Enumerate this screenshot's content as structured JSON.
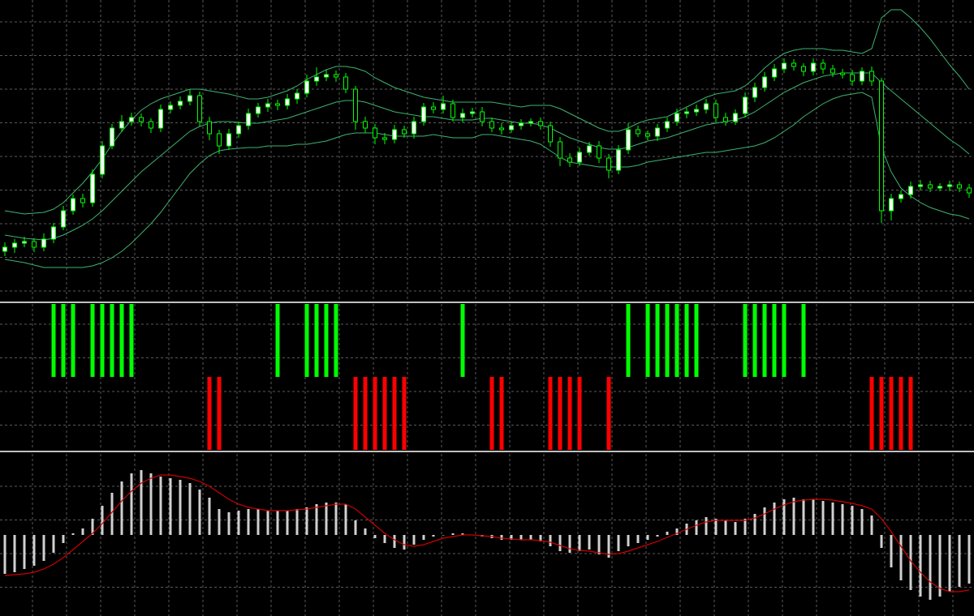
{
  "chart_data": [
    {
      "type": "candlestick",
      "ylim": [
        0,
        370
      ],
      "grid": true,
      "color": "#00ff00",
      "up_fill": "#ffffff",
      "down_fill": "#000000",
      "open": [
        60,
        65,
        70,
        72,
        65,
        75,
        90,
        110,
        125,
        120,
        155,
        190,
        212,
        220,
        225,
        220,
        212,
        235,
        240,
        245,
        252,
        220,
        205,
        190,
        205,
        215,
        230,
        238,
        242,
        240,
        248,
        255,
        270,
        275,
        278,
        275,
        260,
        220,
        212,
        200,
        198,
        210,
        205,
        220,
        238,
        235,
        242,
        225,
        230,
        232,
        220,
        212,
        210,
        215,
        218,
        220,
        215,
        195,
        175,
        170,
        182,
        190,
        175,
        160,
        185,
        210,
        205,
        202,
        212,
        220,
        230,
        232,
        235,
        242,
        225,
        220,
        230,
        250,
        262,
        275,
        285,
        292,
        288,
        282,
        292,
        285,
        280,
        278,
        270,
        282,
        270,
        110,
        125,
        130,
        140,
        142,
        138,
        140,
        142,
        138
      ],
      "high": [
        71,
        75,
        78,
        76,
        82,
        95,
        116,
        130,
        131,
        161,
        196,
        217,
        228,
        231,
        230,
        224,
        241,
        245,
        251,
        260,
        257,
        226,
        210,
        211,
        220,
        236,
        243,
        248,
        247,
        254,
        260,
        278,
        287,
        284,
        283,
        280,
        264,
        226,
        217,
        206,
        216,
        215,
        226,
        243,
        244,
        252,
        247,
        236,
        237,
        238,
        225,
        218,
        220,
        223,
        224,
        225,
        220,
        201,
        181,
        188,
        195,
        196,
        180,
        191,
        218,
        215,
        209,
        217,
        225,
        236,
        237,
        241,
        248,
        247,
        231,
        235,
        256,
        268,
        281,
        291,
        298,
        297,
        292,
        298,
        297,
        290,
        285,
        284,
        287,
        288,
        274,
        131,
        135,
        146,
        148,
        147,
        144,
        147,
        146,
        143
      ],
      "low": [
        54,
        58,
        65,
        59,
        60,
        70,
        86,
        105,
        114,
        115,
        150,
        186,
        207,
        215,
        214,
        206,
        207,
        230,
        235,
        240,
        214,
        197,
        180,
        185,
        200,
        210,
        225,
        232,
        234,
        235,
        242,
        250,
        264,
        270,
        269,
        255,
        210,
        206,
        192,
        192,
        193,
        200,
        199,
        215,
        230,
        230,
        220,
        219,
        225,
        214,
        207,
        204,
        206,
        210,
        214,
        210,
        189,
        165,
        164,
        165,
        178,
        169,
        150,
        155,
        180,
        201,
        197,
        196,
        207,
        215,
        224,
        227,
        230,
        219,
        215,
        216,
        225,
        244,
        257,
        270,
        280,
        283,
        276,
        277,
        279,
        275,
        273,
        264,
        265,
        264,
        95,
        98,
        120,
        125,
        135,
        133,
        134,
        134,
        133,
        126
      ],
      "close": [
        65,
        70,
        72,
        65,
        75,
        90,
        110,
        125,
        120,
        155,
        190,
        212,
        220,
        225,
        220,
        212,
        235,
        240,
        245,
        252,
        220,
        205,
        190,
        205,
        215,
        230,
        238,
        242,
        240,
        248,
        255,
        270,
        275,
        278,
        275,
        260,
        220,
        212,
        200,
        198,
        210,
        205,
        220,
        238,
        235,
        242,
        225,
        230,
        232,
        220,
        212,
        210,
        215,
        218,
        220,
        215,
        195,
        175,
        170,
        182,
        190,
        175,
        160,
        185,
        210,
        205,
        202,
        212,
        220,
        230,
        232,
        235,
        242,
        225,
        220,
        230,
        250,
        262,
        275,
        285,
        292,
        288,
        282,
        292,
        285,
        280,
        278,
        270,
        282,
        270,
        110,
        125,
        130,
        140,
        142,
        138,
        140,
        142,
        138,
        132
      ],
      "bands": [
        {
          "color": "#3cb371",
          "values": [
            110,
            108,
            106,
            107,
            108,
            112,
            120,
            132,
            144,
            158,
            174,
            192,
            208,
            222,
            234,
            242,
            248,
            252,
            256,
            260,
            260,
            258,
            256,
            254,
            251,
            248,
            248,
            250,
            254,
            258,
            264,
            272,
            278,
            284,
            288,
            288,
            286,
            282,
            274,
            268,
            262,
            258,
            254,
            250,
            248,
            246,
            244,
            244,
            244,
            244,
            244,
            242,
            240,
            238,
            240,
            240,
            240,
            236,
            230,
            224,
            218,
            212,
            208,
            208,
            212,
            218,
            222,
            224,
            226,
            232,
            238,
            244,
            250,
            254,
            256,
            258,
            264,
            274,
            286,
            296,
            304,
            308,
            310,
            310,
            310,
            308,
            308,
            306,
            304,
            310,
            348,
            358,
            358,
            348,
            336,
            322,
            306,
            290,
            276,
            260
          ]
        },
        {
          "color": "#3cb371",
          "values": [
            80,
            78,
            76,
            75,
            74,
            76,
            80,
            86,
            92,
            100,
            110,
            122,
            134,
            146,
            158,
            168,
            178,
            188,
            198,
            208,
            214,
            218,
            220,
            220,
            219,
            218,
            218,
            220,
            222,
            224,
            228,
            232,
            236,
            240,
            244,
            246,
            246,
            244,
            240,
            236,
            232,
            230,
            228,
            226,
            226,
            224,
            222,
            222,
            222,
            224,
            224,
            222,
            220,
            218,
            218,
            216,
            212,
            206,
            200,
            196,
            192,
            188,
            186,
            186,
            188,
            192,
            196,
            198,
            200,
            204,
            208,
            212,
            216,
            218,
            220,
            222,
            226,
            232,
            240,
            248,
            256,
            262,
            268,
            272,
            276,
            278,
            280,
            280,
            280,
            280,
            268,
            258,
            248,
            238,
            228,
            218,
            208,
            198,
            190,
            180
          ]
        },
        {
          "color": "#3cb371",
          "values": [
            50,
            48,
            46,
            43,
            40,
            40,
            40,
            40,
            40,
            42,
            46,
            52,
            60,
            70,
            82,
            94,
            108,
            124,
            140,
            156,
            168,
            178,
            184,
            186,
            187,
            188,
            188,
            190,
            190,
            190,
            192,
            192,
            194,
            196,
            200,
            204,
            206,
            206,
            206,
            204,
            202,
            202,
            202,
            202,
            204,
            202,
            200,
            200,
            200,
            204,
            204,
            202,
            200,
            198,
            196,
            192,
            184,
            176,
            170,
            168,
            166,
            164,
            164,
            164,
            164,
            166,
            170,
            172,
            174,
            176,
            178,
            180,
            182,
            182,
            184,
            186,
            188,
            190,
            194,
            200,
            208,
            216,
            226,
            234,
            242,
            248,
            252,
            254,
            256,
            250,
            188,
            158,
            138,
            128,
            120,
            114,
            110,
            106,
            104,
            100
          ]
        }
      ]
    },
    {
      "type": "signal",
      "ylim": [
        0,
        1
      ],
      "grid": true,
      "series": [
        {
          "color": "#00ff00",
          "values": [
            null,
            null,
            null,
            null,
            null,
            1,
            1,
            1,
            null,
            1,
            1,
            1,
            1,
            1,
            null,
            null,
            null,
            null,
            null,
            null,
            null,
            null,
            null,
            null,
            null,
            null,
            null,
            null,
            1,
            null,
            null,
            1,
            1,
            1,
            1,
            null,
            null,
            null,
            null,
            null,
            null,
            null,
            null,
            null,
            null,
            null,
            null,
            1,
            null,
            null,
            null,
            null,
            null,
            null,
            null,
            null,
            null,
            null,
            null,
            null,
            null,
            null,
            null,
            null,
            1,
            null,
            1,
            1,
            1,
            1,
            1,
            1,
            null,
            null,
            null,
            null,
            1,
            1,
            1,
            1,
            1,
            null,
            1,
            null,
            null,
            null,
            null,
            null,
            null,
            null,
            null,
            null,
            null,
            null,
            null,
            null,
            null,
            null,
            null,
            null
          ]
        },
        {
          "color": "#ff0000",
          "values": [
            null,
            null,
            null,
            null,
            null,
            null,
            null,
            null,
            null,
            null,
            null,
            null,
            null,
            null,
            null,
            null,
            null,
            null,
            null,
            null,
            null,
            1,
            1,
            null,
            null,
            null,
            null,
            null,
            null,
            null,
            null,
            null,
            null,
            null,
            null,
            null,
            1,
            1,
            1,
            1,
            1,
            1,
            null,
            null,
            null,
            null,
            null,
            null,
            null,
            null,
            1,
            1,
            null,
            null,
            null,
            null,
            1,
            1,
            1,
            1,
            null,
            null,
            1,
            null,
            null,
            null,
            null,
            null,
            null,
            null,
            null,
            null,
            null,
            null,
            null,
            null,
            null,
            null,
            null,
            null,
            null,
            null,
            null,
            null,
            null,
            null,
            null,
            null,
            null,
            1,
            1,
            1,
            1,
            1,
            null,
            null,
            null,
            null,
            null,
            null
          ]
        }
      ]
    },
    {
      "type": "macd",
      "ylim": [
        -100,
        100
      ],
      "grid": true,
      "histogram": {
        "color": "#d0d0d0",
        "values": [
          -48,
          -46,
          -42,
          -38,
          -32,
          -22,
          -10,
          2,
          8,
          20,
          36,
          52,
          66,
          76,
          80,
          76,
          72,
          70,
          68,
          64,
          56,
          46,
          32,
          28,
          30,
          32,
          32,
          30,
          30,
          30,
          32,
          34,
          38,
          40,
          40,
          38,
          18,
          8,
          -4,
          -10,
          -16,
          -18,
          -12,
          -6,
          -2,
          0,
          2,
          2,
          0,
          -2,
          -4,
          -6,
          -6,
          -6,
          -6,
          -8,
          -14,
          -20,
          -22,
          -20,
          -18,
          -24,
          -28,
          -20,
          -14,
          -10,
          -6,
          -2,
          4,
          8,
          14,
          18,
          22,
          20,
          18,
          16,
          20,
          26,
          34,
          40,
          44,
          46,
          44,
          44,
          42,
          40,
          38,
          36,
          32,
          24,
          -16,
          -40,
          -56,
          -68,
          -76,
          -80,
          -76,
          -70,
          -64,
          -60
        ]
      },
      "signal_line": {
        "color": "#cc0000",
        "values": [
          -50,
          -49,
          -48,
          -46,
          -42,
          -36,
          -28,
          -18,
          -8,
          2,
          14,
          28,
          42,
          54,
          64,
          70,
          74,
          74,
          72,
          70,
          66,
          60,
          52,
          44,
          38,
          34,
          32,
          30,
          30,
          30,
          31,
          32,
          34,
          36,
          38,
          38,
          32,
          22,
          12,
          2,
          -6,
          -12,
          -14,
          -12,
          -8,
          -4,
          -2,
          0,
          0,
          -1,
          -2,
          -4,
          -5,
          -6,
          -6,
          -7,
          -9,
          -13,
          -17,
          -19,
          -20,
          -22,
          -24,
          -23,
          -20,
          -16,
          -12,
          -8,
          -3,
          2,
          7,
          12,
          16,
          18,
          18,
          18,
          18,
          21,
          26,
          32,
          37,
          41,
          43,
          44,
          44,
          43,
          41,
          39,
          36,
          32,
          20,
          4,
          -14,
          -32,
          -46,
          -58,
          -66,
          -70,
          -70,
          -68
        ]
      }
    }
  ]
}
